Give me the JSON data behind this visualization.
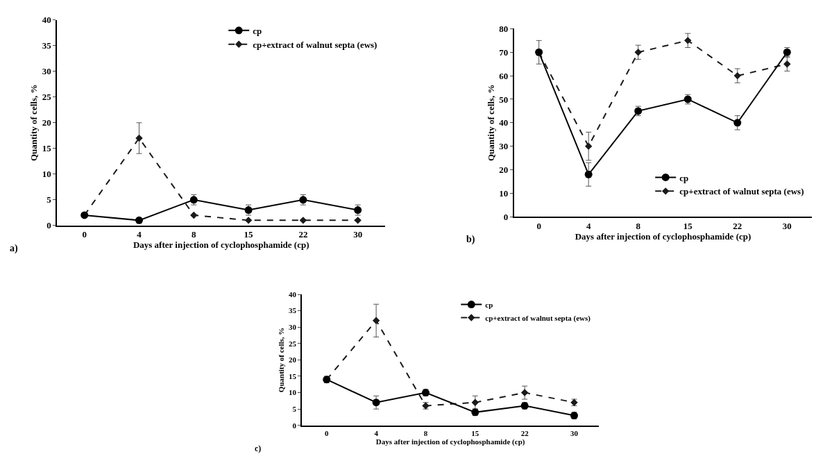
{
  "chart_data": [
    {
      "type": "line",
      "xlabel": "Days after injection of cyclophosphamide (cp)",
      "ylabel": "Quantity of cells, %",
      "categories": [
        "0",
        "4",
        "8",
        "15",
        "22",
        "30"
      ],
      "ylim": [
        0,
        40
      ],
      "yticks": [
        0,
        5,
        10,
        15,
        20,
        25,
        30,
        35,
        40
      ],
      "legend": "top right",
      "annotations": [
        "a)"
      ],
      "series": [
        {
          "name": "cp",
          "color": "#000000",
          "values": [
            2,
            1,
            5,
            3,
            5,
            3
          ],
          "errors": [
            null,
            null,
            1,
            1,
            1,
            1
          ],
          "marker": "circle",
          "line_style": "solid"
        },
        {
          "name": "cp+extract of walnut septa (ews)",
          "color": "#1a1a1a",
          "values": [
            2,
            17,
            2,
            1,
            1,
            1
          ],
          "errors": [
            null,
            3,
            null,
            null,
            null,
            null
          ],
          "marker": "diamond",
          "line_style": "dashed"
        }
      ]
    },
    {
      "type": "line",
      "xlabel": "Days after injection of cyclophosphamide (cp)",
      "ylabel": "Quantity of cells, %",
      "categories": [
        "0",
        "4",
        "8",
        "15",
        "22",
        "30"
      ],
      "ylim": [
        0,
        80
      ],
      "yticks": [
        0,
        10,
        20,
        30,
        40,
        50,
        60,
        70,
        80
      ],
      "legend": "bottom right",
      "annotations": [
        "b)"
      ],
      "series": [
        {
          "name": "cp",
          "color": "#000000",
          "values": [
            70,
            18,
            45,
            50,
            40,
            70
          ],
          "errors": [
            5,
            5,
            2,
            2,
            3,
            2
          ],
          "marker": "circle",
          "line_style": "solid"
        },
        {
          "name": "cp+extract of walnut septa (ews)",
          "color": "#1a1a1a",
          "values": [
            70,
            30,
            70,
            75,
            60,
            65
          ],
          "errors": [
            null,
            6,
            3,
            3,
            3,
            3
          ],
          "marker": "diamond",
          "line_style": "dashed"
        }
      ]
    },
    {
      "type": "line",
      "xlabel": "Days after injection of cyclophosphamide (cp)",
      "ylabel": "Quantity of cells, %",
      "categories": [
        "0",
        "4",
        "8",
        "15",
        "22",
        "30"
      ],
      "ylim": [
        0,
        40
      ],
      "yticks": [
        0,
        5,
        10,
        15,
        20,
        25,
        30,
        35,
        40
      ],
      "legend": "top right",
      "annotations": [
        "c)"
      ],
      "series": [
        {
          "name": "cp",
          "color": "#000000",
          "values": [
            14,
            7,
            10,
            4,
            6,
            3
          ],
          "errors": [
            1,
            2,
            1,
            1,
            1,
            1
          ],
          "marker": "circle",
          "line_style": "solid"
        },
        {
          "name": "cp+extract of walnut septa (ews)",
          "color": "#1a1a1a",
          "values": [
            14,
            32,
            6,
            7,
            10,
            7
          ],
          "errors": [
            null,
            5,
            1,
            2,
            2,
            1
          ],
          "marker": "diamond",
          "line_style": "dashed"
        }
      ]
    }
  ]
}
